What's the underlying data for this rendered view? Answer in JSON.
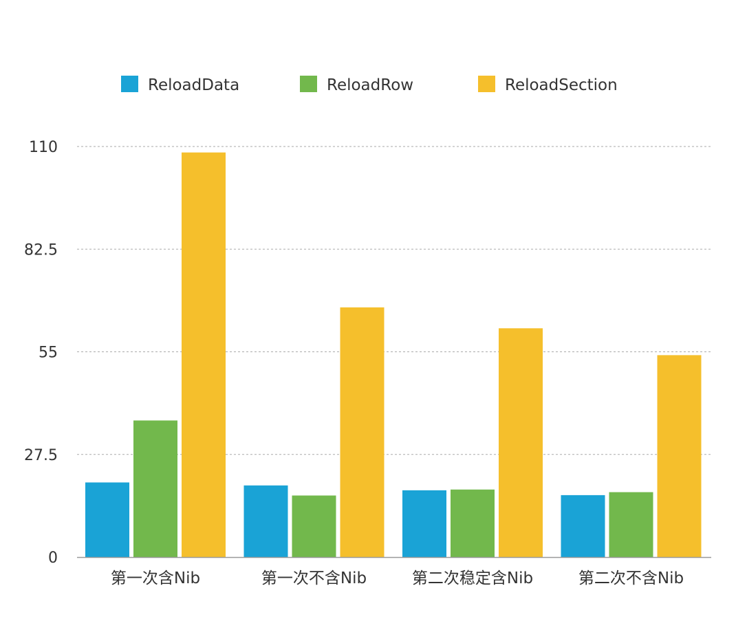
{
  "chart_data": {
    "type": "bar",
    "title": "",
    "xlabel": "",
    "ylabel": "",
    "categories": [
      "第一次含Nib",
      "第一次不含Nib",
      "第二次稳定含Nib",
      "第二次不含Nib"
    ],
    "series": [
      {
        "name": "ReloadData",
        "color": "#1AA3D6",
        "values": [
          20,
          19.2,
          17.9,
          16.6
        ]
      },
      {
        "name": "ReloadRow",
        "color": "#72B84C",
        "values": [
          36.6,
          16.5,
          18.1,
          17.4
        ]
      },
      {
        "name": "ReloadSection",
        "color": "#F5BF2C",
        "values": [
          108.4,
          66.9,
          61.3,
          54.1
        ]
      }
    ],
    "yticks": [
      "0",
      "27.5",
      "55",
      "82.5",
      "110"
    ],
    "ylim": [
      0,
      110
    ],
    "grid": true,
    "legend_position": "top"
  }
}
